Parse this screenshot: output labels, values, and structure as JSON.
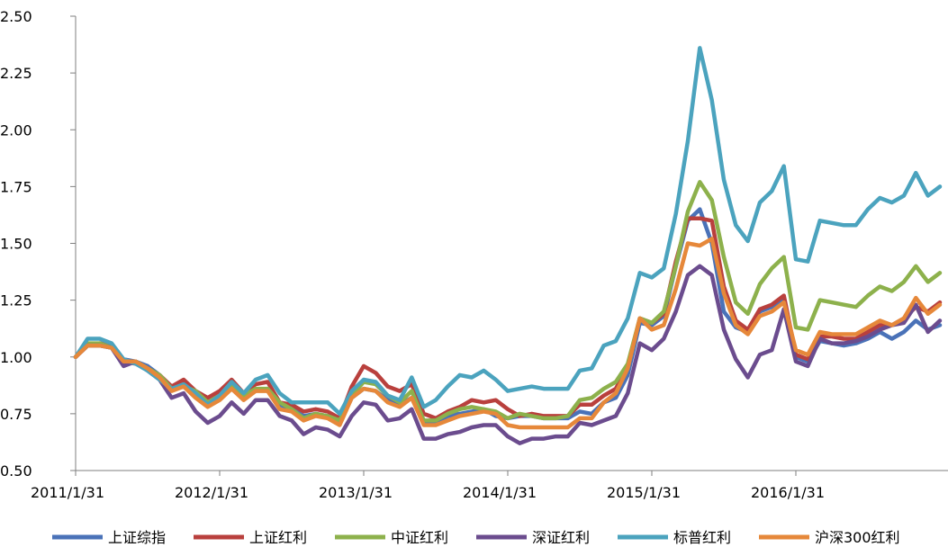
{
  "chart_data": {
    "type": "line",
    "title": "",
    "xlabel": "",
    "ylabel": "",
    "ylim": [
      0.5,
      2.5
    ],
    "yticks": [
      "0.50",
      "0.75",
      "1.00",
      "1.25",
      "1.50",
      "1.75",
      "2.00",
      "2.25",
      "2.50"
    ],
    "xticks": [
      "2011/1/31",
      "2012/1/31",
      "2013/1/31",
      "2014/1/31",
      "2015/1/31",
      "2016/1/31"
    ],
    "grid": false,
    "legend_position": "bottom",
    "series": [
      {
        "name": "上证综指",
        "color": "#4A72B8",
        "values": [
          1.0,
          1.05,
          1.05,
          1.04,
          0.99,
          0.98,
          0.96,
          0.92,
          0.86,
          0.87,
          0.84,
          0.8,
          0.83,
          0.87,
          0.82,
          0.85,
          0.86,
          0.79,
          0.77,
          0.74,
          0.75,
          0.74,
          0.71,
          0.82,
          0.86,
          0.85,
          0.81,
          0.79,
          0.82,
          0.71,
          0.71,
          0.74,
          0.75,
          0.76,
          0.77,
          0.74,
          0.73,
          0.74,
          0.74,
          0.73,
          0.73,
          0.73,
          0.76,
          0.75,
          0.8,
          0.82,
          0.92,
          1.15,
          1.14,
          1.18,
          1.4,
          1.6,
          1.65,
          1.5,
          1.2,
          1.13,
          1.11,
          1.2,
          1.22,
          1.25,
          1.0,
          0.98,
          1.07,
          1.06,
          1.05,
          1.06,
          1.08,
          1.11,
          1.08,
          1.11,
          1.16,
          1.12,
          1.14
        ]
      },
      {
        "name": "上证红利",
        "color": "#B9403D",
        "values": [
          1.0,
          1.05,
          1.06,
          1.05,
          0.98,
          0.97,
          0.95,
          0.92,
          0.87,
          0.9,
          0.85,
          0.82,
          0.85,
          0.9,
          0.84,
          0.88,
          0.89,
          0.8,
          0.79,
          0.76,
          0.77,
          0.76,
          0.73,
          0.87,
          0.96,
          0.93,
          0.87,
          0.85,
          0.88,
          0.75,
          0.73,
          0.76,
          0.78,
          0.81,
          0.8,
          0.81,
          0.77,
          0.74,
          0.75,
          0.74,
          0.74,
          0.74,
          0.79,
          0.79,
          0.83,
          0.86,
          0.96,
          1.17,
          1.15,
          1.19,
          1.42,
          1.61,
          1.61,
          1.6,
          1.31,
          1.16,
          1.12,
          1.21,
          1.23,
          1.27,
          1.01,
          0.99,
          1.09,
          1.09,
          1.08,
          1.08,
          1.11,
          1.14,
          1.14,
          1.17,
          1.22,
          1.2,
          1.24
        ]
      },
      {
        "name": "中证红利",
        "color": "#8DB14C",
        "values": [
          1.0,
          1.06,
          1.06,
          1.04,
          0.98,
          0.98,
          0.95,
          0.92,
          0.86,
          0.87,
          0.85,
          0.8,
          0.83,
          0.88,
          0.83,
          0.86,
          0.86,
          0.8,
          0.77,
          0.73,
          0.75,
          0.74,
          0.72,
          0.83,
          0.89,
          0.88,
          0.83,
          0.8,
          0.85,
          0.72,
          0.72,
          0.75,
          0.77,
          0.78,
          0.77,
          0.76,
          0.73,
          0.75,
          0.74,
          0.73,
          0.73,
          0.74,
          0.81,
          0.82,
          0.86,
          0.89,
          0.97,
          1.17,
          1.15,
          1.2,
          1.4,
          1.64,
          1.77,
          1.69,
          1.44,
          1.24,
          1.19,
          1.32,
          1.39,
          1.44,
          1.13,
          1.12,
          1.25,
          1.24,
          1.23,
          1.22,
          1.27,
          1.31,
          1.29,
          1.33,
          1.4,
          1.33,
          1.37
        ]
      },
      {
        "name": "深证红利",
        "color": "#6B4C8E",
        "values": [
          1.0,
          1.05,
          1.05,
          1.04,
          0.96,
          0.98,
          0.94,
          0.9,
          0.82,
          0.84,
          0.76,
          0.71,
          0.74,
          0.8,
          0.75,
          0.81,
          0.81,
          0.74,
          0.72,
          0.66,
          0.69,
          0.68,
          0.65,
          0.74,
          0.8,
          0.79,
          0.72,
          0.73,
          0.77,
          0.64,
          0.64,
          0.66,
          0.67,
          0.69,
          0.7,
          0.7,
          0.65,
          0.62,
          0.64,
          0.64,
          0.65,
          0.65,
          0.71,
          0.7,
          0.72,
          0.74,
          0.84,
          1.06,
          1.03,
          1.08,
          1.2,
          1.36,
          1.4,
          1.36,
          1.12,
          0.99,
          0.91,
          1.01,
          1.03,
          1.21,
          0.98,
          0.96,
          1.08,
          1.06,
          1.06,
          1.07,
          1.09,
          1.12,
          1.14,
          1.15,
          1.23,
          1.11,
          1.16
        ]
      },
      {
        "name": "标普红利",
        "color": "#4BA3BE",
        "values": [
          1.0,
          1.08,
          1.08,
          1.06,
          0.99,
          0.97,
          0.94,
          0.9,
          0.86,
          0.88,
          0.84,
          0.79,
          0.83,
          0.89,
          0.84,
          0.9,
          0.92,
          0.84,
          0.8,
          0.8,
          0.8,
          0.8,
          0.75,
          0.85,
          0.9,
          0.89,
          0.83,
          0.81,
          0.91,
          0.78,
          0.81,
          0.87,
          0.92,
          0.91,
          0.94,
          0.9,
          0.85,
          0.86,
          0.87,
          0.86,
          0.86,
          0.86,
          0.94,
          0.95,
          1.05,
          1.07,
          1.17,
          1.37,
          1.35,
          1.39,
          1.63,
          1.95,
          2.36,
          2.13,
          1.78,
          1.58,
          1.51,
          1.68,
          1.73,
          1.84,
          1.43,
          1.42,
          1.6,
          1.59,
          1.58,
          1.58,
          1.65,
          1.7,
          1.68,
          1.71,
          1.81,
          1.71,
          1.75
        ]
      },
      {
        "name": "沪深300红利",
        "color": "#E6883A",
        "values": [
          1.0,
          1.05,
          1.05,
          1.04,
          0.98,
          0.98,
          0.95,
          0.91,
          0.85,
          0.87,
          0.82,
          0.78,
          0.81,
          0.86,
          0.81,
          0.85,
          0.85,
          0.77,
          0.76,
          0.72,
          0.74,
          0.73,
          0.7,
          0.82,
          0.86,
          0.85,
          0.8,
          0.78,
          0.82,
          0.7,
          0.7,
          0.72,
          0.74,
          0.75,
          0.76,
          0.75,
          0.7,
          0.69,
          0.69,
          0.69,
          0.69,
          0.69,
          0.73,
          0.73,
          0.8,
          0.84,
          0.95,
          1.17,
          1.12,
          1.14,
          1.3,
          1.5,
          1.49,
          1.52,
          1.28,
          1.14,
          1.1,
          1.18,
          1.2,
          1.24,
          1.03,
          1.01,
          1.11,
          1.1,
          1.1,
          1.1,
          1.13,
          1.16,
          1.14,
          1.17,
          1.26,
          1.19,
          1.23
        ]
      }
    ]
  }
}
